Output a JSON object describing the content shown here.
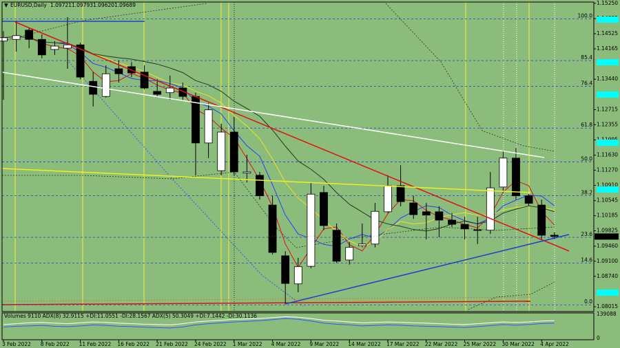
{
  "chart_data": {
    "type": "candlestick",
    "symbol": "EURUSD,Daily",
    "last_quote_labels": [
      "1.09721",
      "1.09793",
      "1.09620",
      "1.09689"
    ],
    "categories": [
      "3 Feb 2022",
      null,
      null,
      "8 Feb 2022",
      null,
      null,
      "11 Feb 2022",
      null,
      null,
      "16 Feb 2022",
      null,
      null,
      "21 Feb 2022",
      null,
      null,
      "24 Feb 2022",
      null,
      null,
      "1 Mar 2022",
      null,
      null,
      "4 Mar 2022",
      null,
      null,
      "9 Mar 2022",
      null,
      null,
      "14 Mar 2022",
      null,
      null,
      "17 Mar 2022",
      null,
      null,
      "22 Mar 2022",
      null,
      null,
      "25 Mar 2022",
      null,
      null,
      "30 Mar 2022",
      null,
      null,
      "4 Apr 2022",
      null
    ],
    "open": [
      1.1435,
      1.1439,
      1.1461,
      1.1439,
      1.1415,
      1.1418,
      1.1426,
      1.1339,
      1.1303,
      1.1369,
      1.1374,
      1.1361,
      1.1315,
      1.1312,
      1.1323,
      1.1303,
      1.1192,
      1.1126,
      1.1218,
      1.112,
      1.1115,
      1.1044,
      1.0923,
      1.0856,
      1.0898,
      1.1074,
      1.0984,
      1.0913,
      1.0947,
      1.0951,
      1.1028,
      1.109,
      1.1049,
      1.1028,
      1.1028,
      1.1008,
      1.0998,
      1.0985,
      1.0984,
      1.1087,
      1.1156,
      1.1066,
      1.1044,
      1.09721
    ],
    "high": [
      1.1459,
      1.1484,
      1.1467,
      1.1451,
      1.1435,
      1.1492,
      1.1431,
      1.1361,
      1.1377,
      1.1389,
      1.1385,
      1.1377,
      1.1344,
      1.1353,
      1.1336,
      1.1312,
      1.1287,
      1.1238,
      1.1254,
      1.1164,
      1.1123,
      1.1066,
      1.0934,
      1.0918,
      1.1098,
      1.109,
      1.1,
      1.0956,
      1.1,
      1.1049,
      1.1115,
      1.1139,
      1.1066,
      1.1049,
      1.1041,
      1.1025,
      1.1016,
      1.1016,
      1.1123,
      1.1172,
      1.118,
      1.107,
      1.1057,
      1.09793
    ],
    "low": [
      1.1295,
      1.141,
      1.1418,
      1.1394,
      1.1402,
      1.1369,
      1.1344,
      1.1279,
      1.13,
      1.1336,
      1.1349,
      1.132,
      1.1303,
      1.1295,
      1.1295,
      1.1115,
      1.1156,
      1.1115,
      1.1115,
      1.1098,
      1.1057,
      1.0926,
      1.0808,
      1.0836,
      1.0893,
      1.0984,
      1.0906,
      1.0902,
      1.0943,
      1.0943,
      1.1025,
      1.1041,
      1.1011,
      1.0962,
      1.0967,
      1.0992,
      1.0962,
      1.0951,
      1.0975,
      1.1074,
      1.1057,
      1.1041,
      1.0962,
      1.0962
    ],
    "close": [
      1.1443,
      1.1448,
      1.1439,
      1.1402,
      1.1423,
      1.1426,
      1.1349,
      1.1308,
      1.1357,
      1.1357,
      1.1359,
      1.1323,
      1.1308,
      1.1323,
      1.1303,
      1.1192,
      1.1271,
      1.1218,
      1.1123,
      1.1123,
      1.1066,
      1.0931,
      1.0857,
      1.0897,
      1.107,
      1.0995,
      1.091,
      1.0943,
      1.0951,
      1.1029,
      1.109,
      1.1052,
      1.1021,
      1.102,
      1.1008,
      1.0998,
      1.0987,
      1.0984,
      1.1085,
      1.1156,
      1.1066,
      1.1048,
      1.0972,
      1.09689
    ],
    "up_color": "#ffffff",
    "down_color": "#000000",
    "background": "#8cbc7c",
    "ylim": [
      1.079,
      1.1528
    ],
    "yticks": [
      {
        "value": 1.1525,
        "label": "1.15250"
      },
      1.14885,
      1.14525,
      1.14165,
      {
        "value": 1.1344,
        "label": "1.13440"
      },
      1.12715,
      1.12355,
      1.11995,
      {
        "value": 1.1163,
        "label": "1.11630"
      },
      {
        "value": 1.1127,
        "label": "1.11270"
      },
      {
        "value": 1.1091,
        "label": "1.10910"
      },
      1.10545,
      1.10185,
      1.09825,
      {
        "value": 1.0946,
        "label": "1.09460"
      },
      {
        "value": 1.091,
        "label": "1.09100"
      },
      {
        "value": 1.0874,
        "label": "1.08740"
      },
      1.08015
    ],
    "grid": false,
    "moving_averages": [
      {
        "period": 3,
        "color": "#e01010"
      },
      {
        "period": 5,
        "color": "#2040ff"
      },
      {
        "period": 8,
        "color": "#f0e020"
      },
      {
        "period": 13,
        "color": "#1e3a1e"
      }
    ],
    "fibo": {
      "low": 1.0806,
      "high": 1.1488,
      "color": "#1f3fd0",
      "levels": [
        {
          "value": 100,
          "label": "100.0"
        },
        85.4,
        76.4,
        61.8,
        {
          "value": 50,
          "label": "50.0"
        },
        38.2,
        23.6,
        14.6,
        {
          "value": 0,
          "label": "0.0"
        }
      ]
    },
    "indicator": {
      "label": "Volumes 9110  ADX(8) 32.9115 +DI:11.0551 -DI:28.1567  ADX(5) 50.3049 +DI:7.1442 -DI:30.1136",
      "ylim": [
        0,
        139088
      ],
      "yticks": [
        0,
        139088
      ],
      "series": [
        {
          "color": "#ffffff",
          "values": [
            80000,
            85000,
            90000,
            92000,
            88000,
            85000,
            90000,
            95000,
            92000,
            88000,
            85000,
            82000,
            80000,
            78000,
            85000,
            95000,
            100000,
            105000,
            110000,
            112000,
            115000,
            120000,
            125000,
            122000,
            115000,
            105000,
            100000,
            95000,
            90000,
            92000,
            95000,
            93000,
            90000,
            88000,
            85000,
            82000,
            80000,
            85000,
            90000,
            95000,
            92000,
            95000,
            100000,
            102000
          ]
        },
        {
          "color": "#2f55ff",
          "values": [
            65000,
            70000,
            72000,
            75000,
            70000,
            68000,
            72000,
            78000,
            75000,
            70000,
            68000,
            65000,
            62000,
            60000,
            66000,
            78000,
            85000,
            90000,
            95000,
            98000,
            102000,
            108000,
            115000,
            110000,
            100000,
            88000,
            82000,
            78000,
            72000,
            75000,
            78000,
            76000,
            72000,
            70000,
            68000,
            65000,
            63000,
            68000,
            74000,
            80000,
            76000,
            80000,
            86000,
            88000
          ]
        }
      ]
    }
  }
}
